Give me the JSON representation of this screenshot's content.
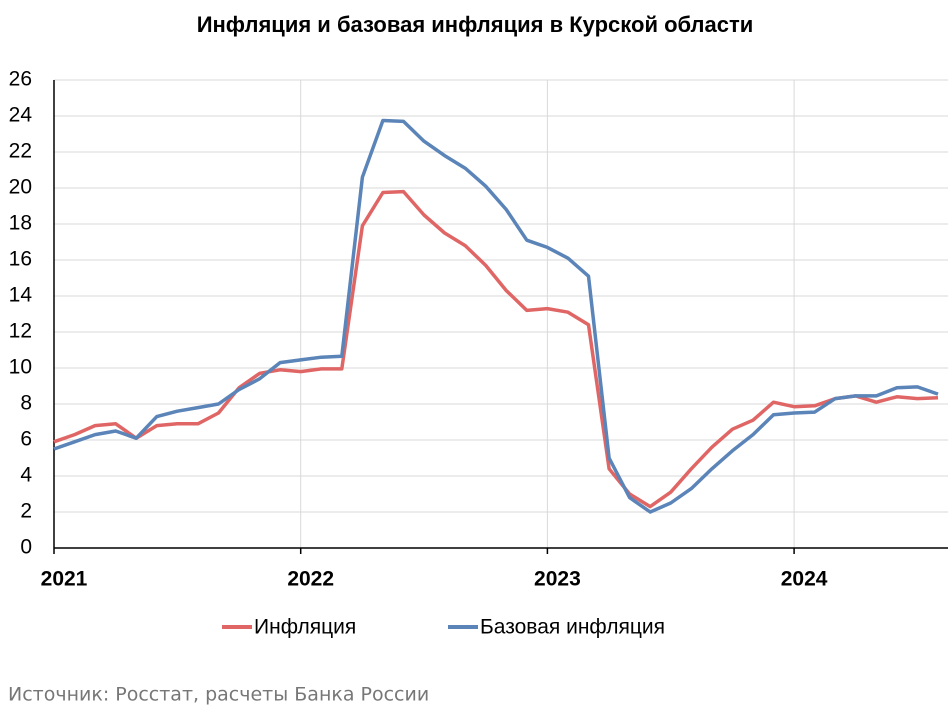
{
  "chart_data": {
    "type": "line",
    "title": "Инфляция и базовая инфляция в Курской области",
    "source": "Источник: Росстат, расчеты Банка России",
    "categories": [
      "2021",
      null,
      null,
      null,
      null,
      null,
      null,
      null,
      null,
      null,
      null,
      null,
      "2022",
      null,
      null,
      null,
      null,
      null,
      null,
      null,
      null,
      null,
      null,
      null,
      "2023",
      null,
      null,
      null,
      null,
      null,
      null,
      null,
      null,
      null,
      null,
      null,
      "2024",
      null,
      null,
      null,
      null,
      null,
      null,
      null
    ],
    "series": [
      {
        "name": "Инфляция",
        "color": "#e06666",
        "values": [
          5.9,
          6.3,
          6.8,
          6.9,
          6.1,
          6.8,
          6.9,
          6.9,
          7.5,
          8.9,
          9.7,
          9.9,
          9.8,
          9.95,
          9.95,
          17.9,
          19.75,
          19.8,
          18.5,
          17.5,
          16.8,
          15.7,
          14.3,
          13.2,
          13.3,
          13.1,
          12.4,
          4.4,
          3.0,
          2.3,
          3.1,
          4.4,
          5.6,
          6.6,
          7.1,
          8.1,
          7.85,
          7.9,
          8.3,
          8.45,
          8.1,
          8.4,
          8.3,
          8.35
        ]
      },
      {
        "name": "Базовая инфляция",
        "color": "#5b84b8",
        "values": [
          5.5,
          5.9,
          6.3,
          6.5,
          6.1,
          7.3,
          7.6,
          7.8,
          8.0,
          8.8,
          9.4,
          10.3,
          10.45,
          10.6,
          10.65,
          20.6,
          23.75,
          23.7,
          22.6,
          21.8,
          21.1,
          20.1,
          18.8,
          17.1,
          16.7,
          16.1,
          15.1,
          5.0,
          2.8,
          2.0,
          2.5,
          3.3,
          4.4,
          5.4,
          6.3,
          7.4,
          7.5,
          7.55,
          8.3,
          8.45,
          8.45,
          8.9,
          8.95,
          8.55
        ]
      }
    ],
    "ylim": [
      0,
      26
    ],
    "yticks": [
      0,
      2,
      4,
      6,
      8,
      10,
      12,
      14,
      16,
      18,
      20,
      22,
      24,
      26
    ],
    "grid": true
  }
}
